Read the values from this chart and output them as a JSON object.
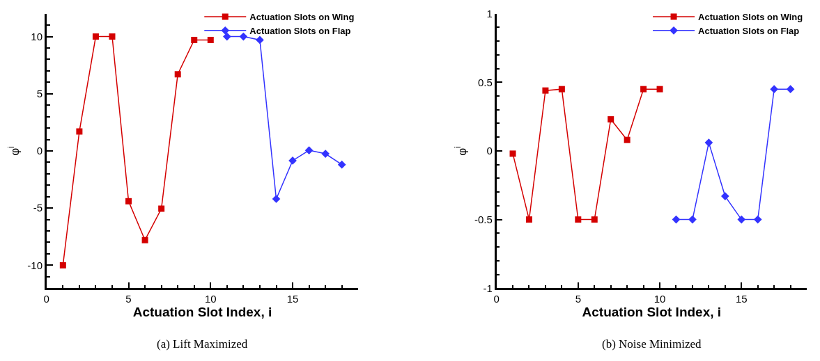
{
  "chart_data": [
    {
      "type": "line",
      "title": "(a) Lift Maximized",
      "xlabel": "Actuation Slot Index, i",
      "ylabel": "φ$^{i}$",
      "legend": "top right",
      "xlim": [
        0,
        19
      ],
      "xticks": [
        0,
        {
          "value": 1,
          "label": null
        },
        {
          "value": 2,
          "label": null
        },
        {
          "value": 3,
          "label": null
        },
        {
          "value": 4,
          "label": null
        },
        5,
        {
          "value": 6,
          "label": null
        },
        {
          "value": 7,
          "label": null
        },
        {
          "value": 8,
          "label": null
        },
        {
          "value": 9,
          "label": null
        },
        10,
        {
          "value": 11,
          "label": null
        },
        {
          "value": 12,
          "label": null
        },
        {
          "value": 13,
          "label": null
        },
        {
          "value": 14,
          "label": null
        },
        15,
        {
          "value": 16,
          "label": null
        },
        {
          "value": 17,
          "label": null
        },
        {
          "value": 18,
          "label": null
        }
      ],
      "ylim": [
        -12,
        12
      ],
      "yticks": [
        {
          "value": -11,
          "label": null
        },
        -10,
        {
          "value": -9,
          "label": null
        },
        {
          "value": -8,
          "label": null
        },
        {
          "value": -7,
          "label": null
        },
        {
          "value": -6,
          "label": null
        },
        -5,
        {
          "value": -4,
          "label": null
        },
        {
          "value": -3,
          "label": null
        },
        {
          "value": -2,
          "label": null
        },
        {
          "value": -1,
          "label": null
        },
        0,
        {
          "value": 1,
          "label": null
        },
        {
          "value": 2,
          "label": null
        },
        {
          "value": 3,
          "label": null
        },
        {
          "value": 4,
          "label": null
        },
        5,
        {
          "value": 6,
          "label": null
        },
        {
          "value": 7,
          "label": null
        },
        {
          "value": 8,
          "label": null
        },
        {
          "value": 9,
          "label": null
        },
        10,
        {
          "value": 11,
          "label": null
        }
      ],
      "series": [
        {
          "name": "Actuation Slots on Wing",
          "color": "#d40000",
          "marker": "square",
          "x": [
            1,
            2,
            3,
            4,
            5,
            6,
            7,
            8,
            9,
            10
          ],
          "values": [
            -10,
            1.7,
            10,
            10,
            -4.4,
            -7.8,
            -5.05,
            6.7,
            9.7,
            9.7
          ]
        },
        {
          "name": "Actuation Slots on Flap",
          "color": "#3333ff",
          "marker": "diamond",
          "x": [
            11,
            12,
            13,
            14,
            15,
            16,
            17,
            18
          ],
          "values": [
            10,
            10,
            9.7,
            -4.2,
            -0.85,
            0.05,
            -0.25,
            -1.2
          ]
        }
      ]
    },
    {
      "type": "line",
      "title": "(b) Noise Minimized",
      "xlabel": "Actuation Slot Index, i",
      "ylabel": "φ$^{i}$",
      "legend": "top right",
      "xlim": [
        0,
        19
      ],
      "xticks": [
        0,
        {
          "value": 1,
          "label": null
        },
        {
          "value": 2,
          "label": null
        },
        {
          "value": 3,
          "label": null
        },
        {
          "value": 4,
          "label": null
        },
        5,
        {
          "value": 6,
          "label": null
        },
        {
          "value": 7,
          "label": null
        },
        {
          "value": 8,
          "label": null
        },
        {
          "value": 9,
          "label": null
        },
        10,
        {
          "value": 11,
          "label": null
        },
        {
          "value": 12,
          "label": null
        },
        {
          "value": 13,
          "label": null
        },
        {
          "value": 14,
          "label": null
        },
        15,
        {
          "value": 16,
          "label": null
        },
        {
          "value": 17,
          "label": null
        },
        {
          "value": 18,
          "label": null
        }
      ],
      "ylim": [
        -1,
        1
      ],
      "yticks": [
        -1,
        {
          "value": -0.9,
          "label": null
        },
        {
          "value": -0.8,
          "label": null
        },
        {
          "value": -0.7,
          "label": null
        },
        {
          "value": -0.6,
          "label": null
        },
        -0.5,
        {
          "value": -0.4,
          "label": null
        },
        {
          "value": -0.3,
          "label": null
        },
        {
          "value": -0.2,
          "label": null
        },
        {
          "value": -0.1,
          "label": null
        },
        0,
        {
          "value": 0.1,
          "label": null
        },
        {
          "value": 0.2,
          "label": null
        },
        {
          "value": 0.3,
          "label": null
        },
        {
          "value": 0.4,
          "label": null
        },
        0.5,
        {
          "value": 0.6,
          "label": null
        },
        {
          "value": 0.7,
          "label": null
        },
        {
          "value": 0.8,
          "label": null
        },
        {
          "value": 0.9,
          "label": null
        },
        1
      ],
      "series": [
        {
          "name": "Actuation Slots on Wing",
          "color": "#d40000",
          "marker": "square",
          "x": [
            1,
            2,
            3,
            4,
            5,
            6,
            7,
            8,
            9,
            10
          ],
          "values": [
            -0.02,
            -0.5,
            0.44,
            0.45,
            -0.5,
            -0.5,
            0.23,
            0.08,
            0.45,
            0.45
          ]
        },
        {
          "name": "Actuation Slots on Flap",
          "color": "#3333ff",
          "marker": "diamond",
          "x": [
            11,
            12,
            13,
            14,
            15,
            16,
            17,
            18
          ],
          "values": [
            -0.5,
            -0.5,
            0.06,
            -0.33,
            -0.5,
            -0.5,
            0.45,
            0.45
          ]
        }
      ]
    }
  ]
}
